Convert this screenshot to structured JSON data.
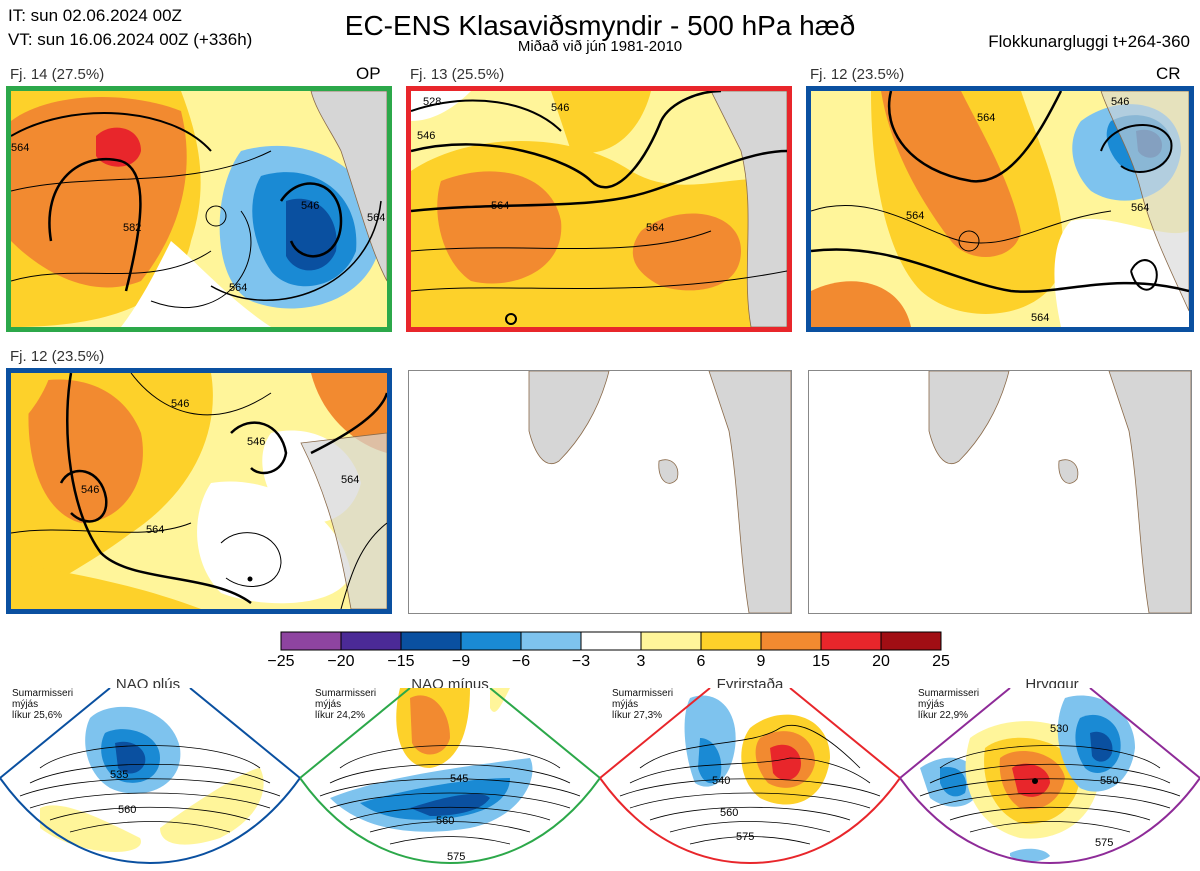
{
  "header": {
    "it": "IT: sun 02.06.2024 00Z",
    "vt": "VT: sun 16.06.2024 00Z  (+336h)",
    "title": "EC-ENS Klasaviðsmyndir - 500 hPa hæð",
    "subtitle": "Miðað við jún 1981-2010",
    "window": "Flokkunargluggi t+264-360"
  },
  "panels": [
    {
      "label": "Fj. 14 (27.5%)",
      "tag": "OP",
      "border": "#2ca84a",
      "contours": [
        "564",
        "582",
        "546",
        "564",
        "564"
      ]
    },
    {
      "label": "Fj. 13 (25.5%)",
      "tag": "",
      "border": "#e8262b",
      "contours": [
        "528",
        "546",
        "564",
        "564",
        "546"
      ]
    },
    {
      "label": "Fj. 12 (23.5%)",
      "tag": "CR",
      "border": "#0a50a0",
      "contours": [
        "564",
        "564",
        "564",
        "546",
        "564"
      ]
    },
    {
      "label": "Fj. 12 (23.5%)",
      "tag": "",
      "border": "#0a50a0",
      "contours": [
        "546",
        "546",
        "546",
        "564",
        "564"
      ]
    }
  ],
  "colorbar": {
    "ticks": [
      "−25",
      "−20",
      "−15",
      "−9",
      "−6",
      "−3",
      "3",
      "6",
      "9",
      "15",
      "20",
      "25"
    ],
    "colors": [
      "#8e44a0",
      "#4b2a96",
      "#0a50a0",
      "#1a8ad4",
      "#7ec3ee",
      "#ffffff",
      "#fff59a",
      "#fdd12a",
      "#f28a30",
      "#e8262b",
      "#a10e14"
    ]
  },
  "regimes": [
    {
      "name": "NAO plús",
      "note": [
        "Sumarmisseri",
        "mýjás",
        "líkur 25,6%"
      ],
      "dot": "#0a50a0",
      "border": "#0a50a0",
      "contours": [
        "535",
        "560"
      ]
    },
    {
      "name": "NAO mínus",
      "note": [
        "Sumarmisseri",
        "mýjás",
        "líkur 24,2%"
      ],
      "dot": "#2ca84a",
      "border": "#2ca84a",
      "contours": [
        "545",
        "560",
        "575"
      ]
    },
    {
      "name": "Fyrirstaða",
      "note": [
        "Sumarmisseri",
        "mýjás",
        "líkur 27,3%"
      ],
      "dot": "#e8262b",
      "border": "#e8262b",
      "contours": [
        "540",
        "560",
        "575"
      ]
    },
    {
      "name": "Hryggur",
      "note": [
        "Sumarmisseri",
        "mýjás",
        "líkur 22,9%"
      ],
      "dot": "#e45ee8",
      "border": "#8e2b98",
      "contours": [
        "530",
        "550",
        "575"
      ]
    }
  ]
}
